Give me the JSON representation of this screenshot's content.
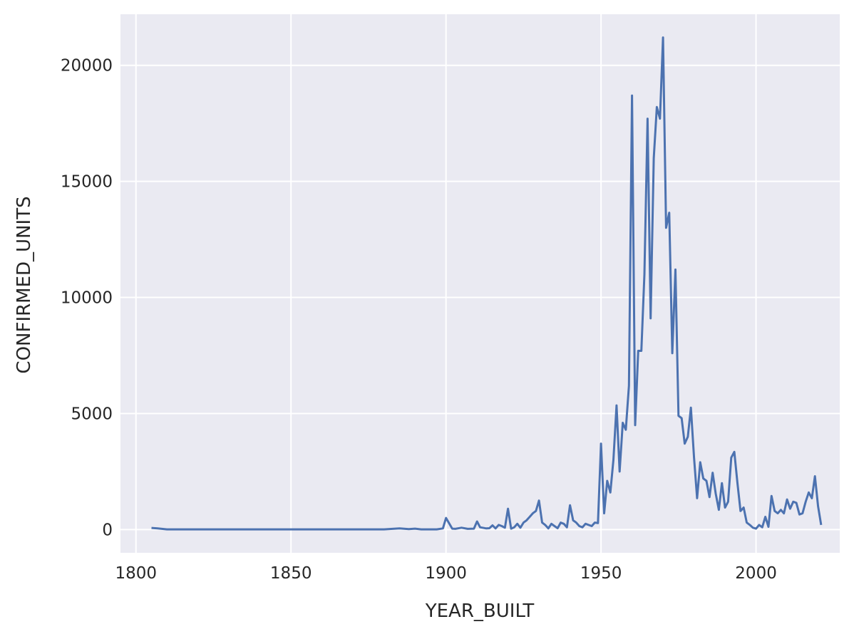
{
  "chart_data": {
    "type": "line",
    "title": "",
    "xlabel": "YEAR_BUILT",
    "ylabel": "CONFIRMED_UNITS",
    "xlim": [
      1795,
      2027
    ],
    "ylim": [
      -1000,
      22200
    ],
    "xticks": [
      1800,
      1850,
      1900,
      1950,
      2000
    ],
    "yticks": [
      0,
      5000,
      10000,
      15000,
      20000
    ],
    "grid": true,
    "style": "seaborn-darkgrid",
    "colors": {
      "background": "#eaeaf2",
      "grid": "#ffffff",
      "line": "#4c72b0",
      "text": "#262626"
    },
    "series": [
      {
        "x": [
          1805,
          1807,
          1810,
          1815,
          1820,
          1825,
          1830,
          1835,
          1840,
          1845,
          1850,
          1855,
          1860,
          1865,
          1870,
          1875,
          1880,
          1885,
          1888,
          1890,
          1892,
          1895,
          1897,
          1899,
          1900,
          1902,
          1903,
          1905,
          1907,
          1909,
          1910,
          1911,
          1913,
          1914,
          1915,
          1916,
          1917,
          1918,
          1919,
          1920,
          1921,
          1922,
          1923,
          1924,
          1925,
          1926,
          1927,
          1928,
          1929,
          1930,
          1931,
          1932,
          1933,
          1934,
          1935,
          1936,
          1937,
          1938,
          1939,
          1940,
          1941,
          1942,
          1943,
          1944,
          1945,
          1946,
          1947,
          1948,
          1949,
          1950,
          1951,
          1952,
          1953,
          1954,
          1955,
          1956,
          1957,
          1958,
          1959,
          1960,
          1961,
          1962,
          1963,
          1964,
          1965,
          1966,
          1967,
          1968,
          1969,
          1970,
          1971,
          1972,
          1973,
          1974,
          1975,
          1976,
          1977,
          1978,
          1979,
          1980,
          1981,
          1982,
          1983,
          1984,
          1985,
          1986,
          1987,
          1988,
          1989,
          1990,
          1991,
          1992,
          1993,
          1994,
          1995,
          1996,
          1997,
          1998,
          1999,
          2000,
          2001,
          2002,
          2003,
          2004,
          2005,
          2006,
          2007,
          2008,
          2009,
          2010,
          2011,
          2012,
          2013,
          2014,
          2015,
          2016,
          2017,
          2018,
          2019,
          2020,
          2021
        ],
        "y": [
          70,
          50,
          10,
          10,
          10,
          10,
          10,
          10,
          10,
          10,
          10,
          10,
          10,
          10,
          10,
          10,
          10,
          50,
          20,
          40,
          10,
          10,
          10,
          50,
          500,
          40,
          30,
          80,
          30,
          40,
          350,
          100,
          50,
          60,
          180,
          50,
          200,
          150,
          80,
          900,
          40,
          100,
          250,
          80,
          300,
          400,
          550,
          700,
          800,
          1250,
          300,
          200,
          50,
          250,
          150,
          60,
          300,
          250,
          100,
          1050,
          400,
          300,
          150,
          100,
          250,
          200,
          150,
          300,
          280,
          3700,
          700,
          2100,
          1600,
          3000,
          5350,
          2500,
          4600,
          4300,
          6200,
          18700,
          4500,
          7700,
          7700,
          11000,
          17700,
          9100,
          16000,
          18200,
          17700,
          21200,
          13000,
          13650,
          7600,
          11200,
          4900,
          4800,
          3700,
          4000,
          5250,
          3100,
          1350,
          2900,
          2200,
          2100,
          1400,
          2450,
          1550,
          850,
          2000,
          950,
          1200,
          3100,
          3350,
          2000,
          800,
          950,
          300,
          200,
          80,
          40,
          200,
          100,
          550,
          120,
          1450,
          800,
          700,
          850,
          700,
          1300,
          900,
          1200,
          1150,
          650,
          700,
          1200,
          1600,
          1350,
          2300,
          1000,
          200
        ]
      }
    ]
  }
}
